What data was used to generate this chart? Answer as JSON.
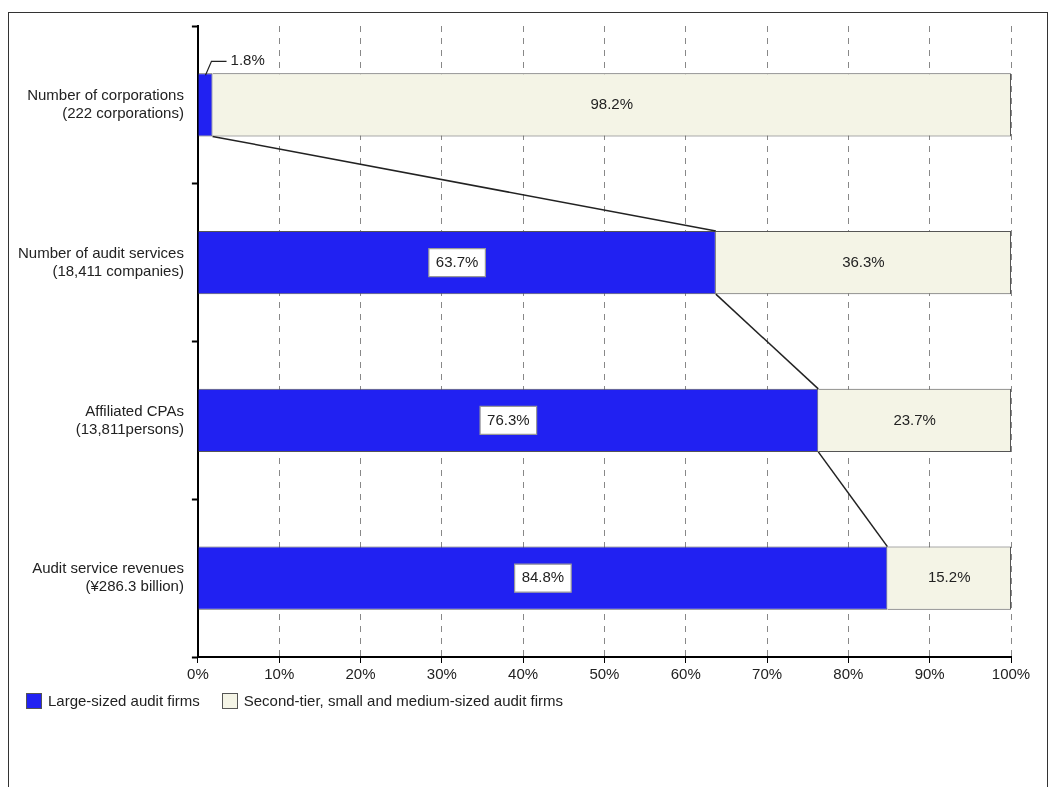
{
  "chart_data": {
    "type": "bar",
    "orientation": "horizontal",
    "stacked": true,
    "categories": [
      "Number of corporations\n(222 corporations)",
      "Number of audit services\n(18,411 companies)",
      "Affiliated CPAs\n(13,811persons)",
      "Audit service revenues\n(¥286.3 billion)"
    ],
    "series": [
      {
        "name": "Large-sized audit firms",
        "color": "#2121f2",
        "values": [
          1.8,
          63.7,
          76.3,
          84.8
        ],
        "value_labels": [
          "1.8%",
          "63.7%",
          "76.3%",
          "84.8%"
        ]
      },
      {
        "name": "Second-tier, small and medium-sized audit firms",
        "color": "#f4f4e6",
        "values": [
          98.2,
          36.3,
          23.7,
          15.2
        ],
        "value_labels": [
          "98.2%",
          "36.3%",
          "23.7%",
          "15.2%"
        ]
      }
    ],
    "xlim": [
      0,
      100
    ],
    "xticks": [
      {
        "value": 0,
        "label": "0%"
      },
      {
        "value": 10,
        "label": "10%"
      },
      {
        "value": 20,
        "label": "20%"
      },
      {
        "value": 30,
        "label": "30%"
      },
      {
        "value": 40,
        "label": "40%"
      },
      {
        "value": 50,
        "label": "50%"
      },
      {
        "value": 60,
        "label": "60%"
      },
      {
        "value": 70,
        "label": "70%"
      },
      {
        "value": 80,
        "label": "80%"
      },
      {
        "value": 90,
        "label": "90%"
      },
      {
        "value": 100,
        "label": "100%"
      }
    ],
    "grid": "x",
    "legend": "bottom left"
  }
}
